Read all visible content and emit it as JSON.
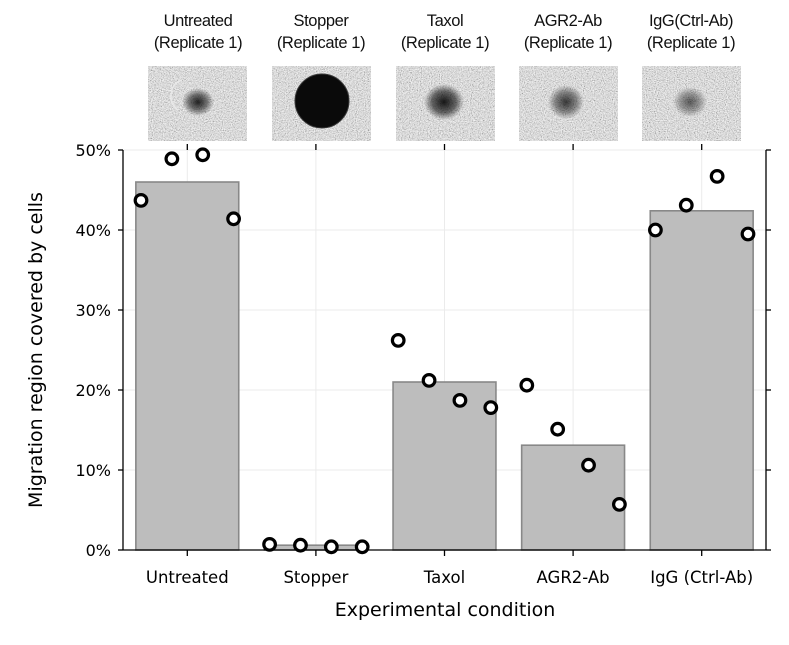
{
  "chart_data": {
    "type": "bar",
    "xlabel": "Experimental condition",
    "ylabel": "Migration region covered by cells",
    "ylim": [
      0,
      50
    ],
    "yticks": [
      0,
      10,
      20,
      30,
      40,
      50
    ],
    "ytick_labels": [
      "0%",
      "10%",
      "20%",
      "30%",
      "40%",
      "50%"
    ],
    "grid": true,
    "categories": [
      "Untreated",
      "Stopper",
      "Taxol",
      "AGR2-Ab",
      "IgG (Ctrl-Ab)"
    ],
    "bar_values": [
      46.0,
      0.6,
      21.0,
      13.1,
      42.4
    ],
    "points": [
      [
        43.7,
        48.9,
        49.4,
        41.4
      ],
      [
        0.7,
        0.6,
        0.4,
        0.4
      ],
      [
        26.2,
        21.2,
        18.7,
        17.8
      ],
      [
        20.6,
        15.1,
        10.6,
        5.7
      ],
      [
        40.0,
        43.1,
        46.7,
        39.5
      ]
    ],
    "thumbnails": [
      {
        "title": "Untreated",
        "subtitle": "(Replicate 1)"
      },
      {
        "title": "Stopper",
        "subtitle": "(Replicate 1)"
      },
      {
        "title": "Taxol",
        "subtitle": "(Replicate 1)"
      },
      {
        "title": "AGR2-Ab",
        "subtitle": "(Replicate 1)"
      },
      {
        "title": "IgG(Ctrl-Ab)",
        "subtitle": "(Replicate 1)"
      }
    ],
    "colors": {
      "bar_fill": "#bdbdbd",
      "bar_stroke": "#888888",
      "point_fill": "#ffffff",
      "point_stroke": "#000000",
      "grid": "#ebebeb",
      "axis": "#000000"
    }
  }
}
